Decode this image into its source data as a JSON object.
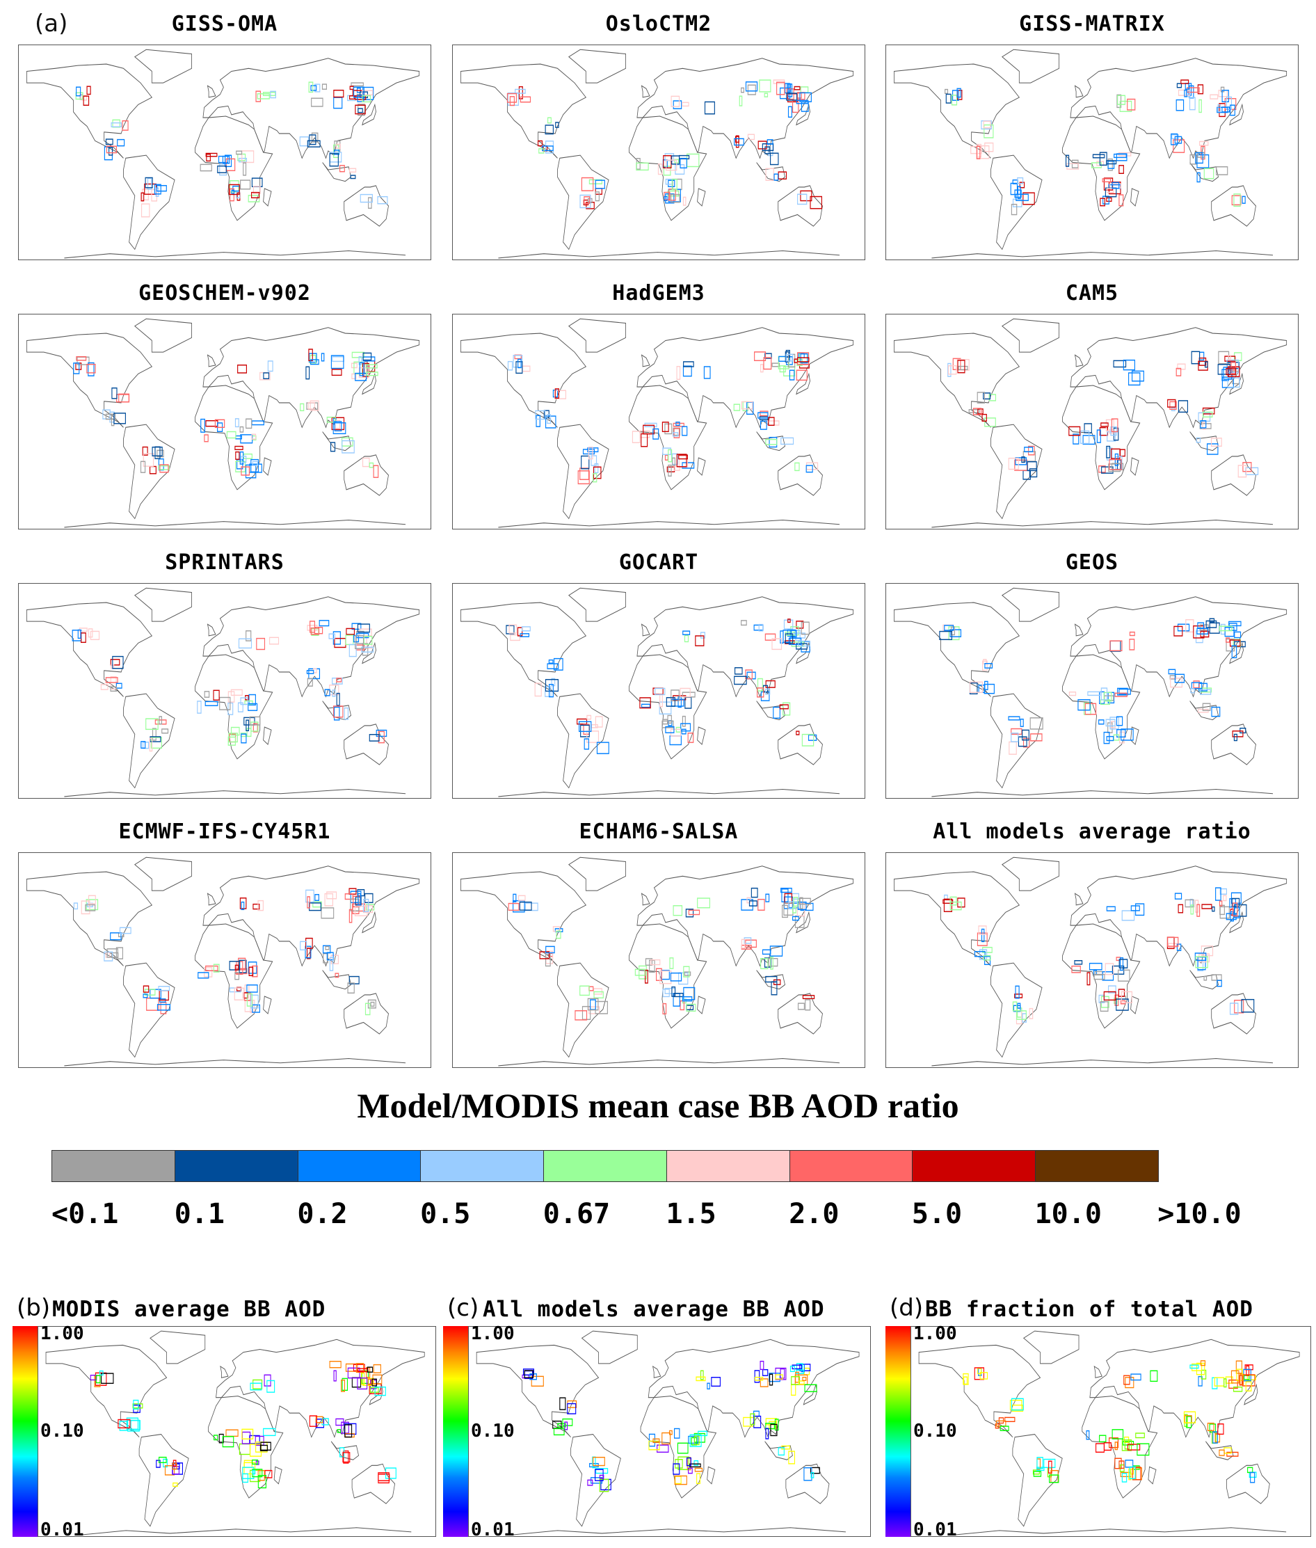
{
  "figure_label_a": "(a)",
  "ratio_panels": [
    {
      "title": "GISS-OMA"
    },
    {
      "title": "OsloCTM2"
    },
    {
      "title": "GISS-MATRIX"
    },
    {
      "title": "GEOSCHEM-v902"
    },
    {
      "title": "HadGEM3"
    },
    {
      "title": "CAM5"
    },
    {
      "title": "SPRINTARS"
    },
    {
      "title": "GOCART"
    },
    {
      "title": "GEOS"
    },
    {
      "title": "ECMWF-IFS-CY45R1"
    },
    {
      "title": "ECHAM6-SALSA"
    },
    {
      "title": "All models average ratio"
    }
  ],
  "ratio_colorbar": {
    "title": "Model/MODIS mean case BB AOD ratio",
    "colors": [
      "#a0a0a0",
      "#004c99",
      "#0080ff",
      "#99ccff",
      "#99ff99",
      "#ffcccc",
      "#ff6666",
      "#cc0000",
      "#663300"
    ],
    "labels": [
      "<0.1",
      "0.1",
      "0.2",
      "0.5",
      "0.67",
      "1.5",
      "2.0",
      "5.0",
      "10.0",
      ">10.0"
    ]
  },
  "bottom_panels": [
    {
      "label": "(b)",
      "title": "MODIS average BB AOD",
      "ticks": [
        "1.00",
        "0.10",
        "0.01"
      ]
    },
    {
      "label": "(c)",
      "title": "All models average BB AOD",
      "ticks": [
        "1.00",
        "0.10",
        "0.01"
      ]
    },
    {
      "label": "(d)",
      "title": "BB fraction of total AOD",
      "ticks": [
        "1.00",
        "0.10",
        "0.01"
      ]
    }
  ],
  "rainbow_scale": {
    "min": 0.01,
    "max": 1.0,
    "scale": "log"
  }
}
